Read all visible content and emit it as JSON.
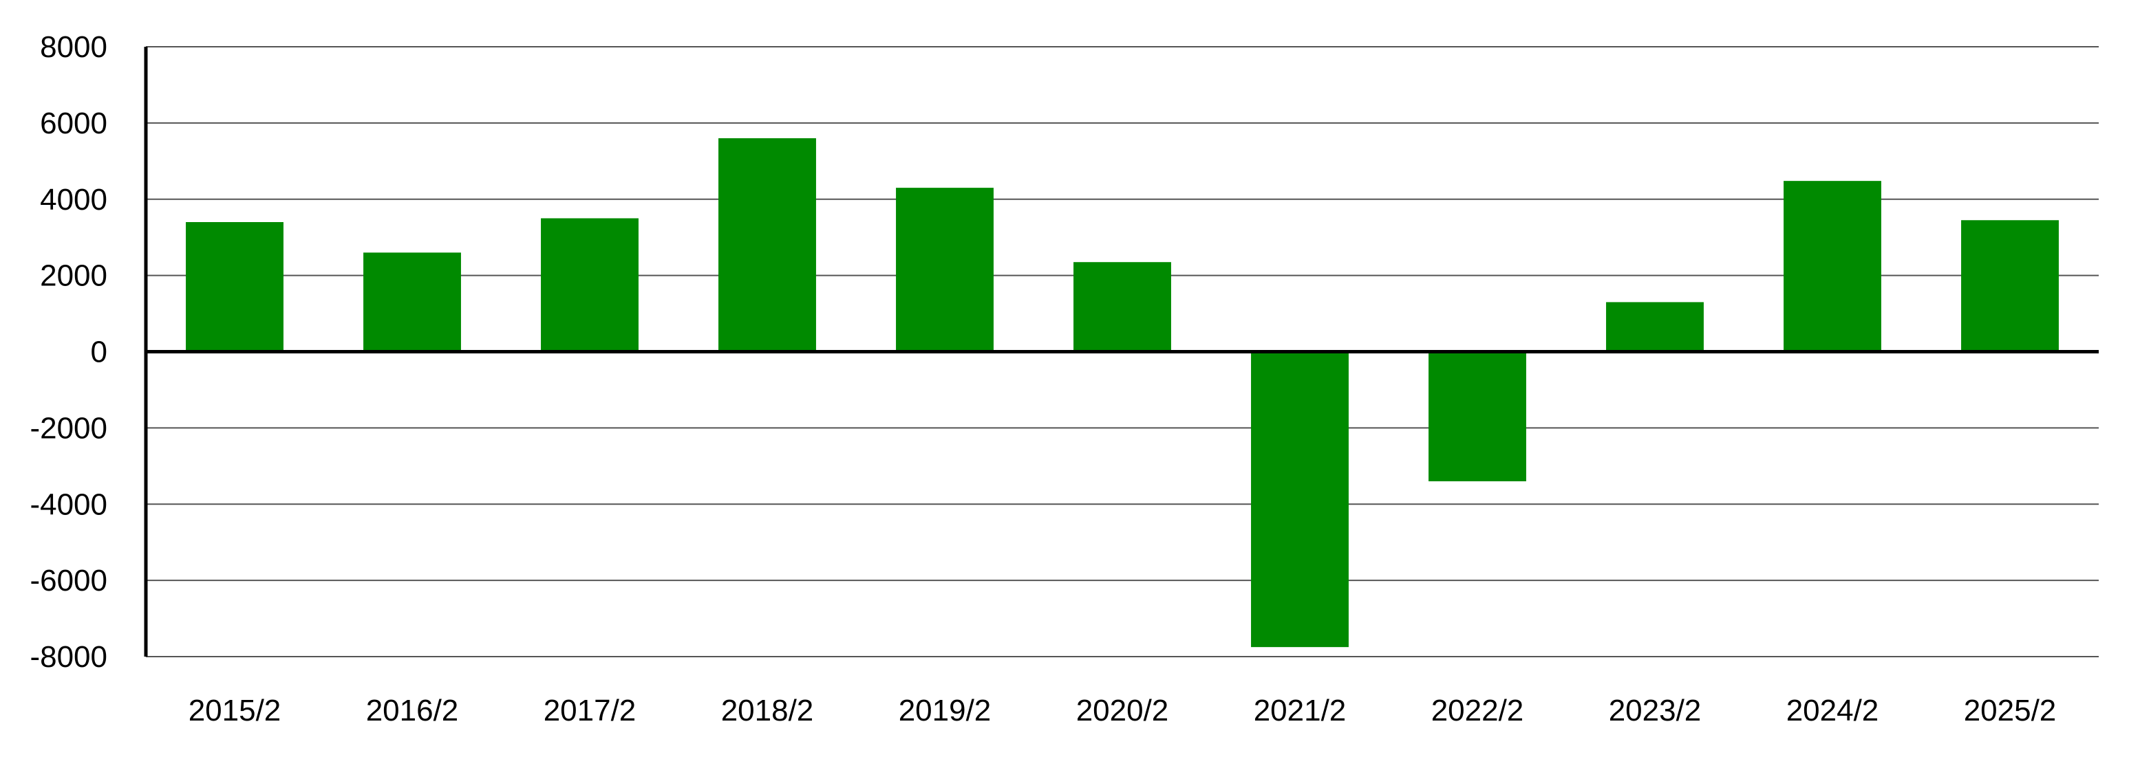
{
  "chart_data": {
    "type": "bar",
    "title": "",
    "xlabel": "",
    "ylabel": "",
    "categories": [
      "2015/2",
      "2016/2",
      "2017/2",
      "2018/2",
      "2019/2",
      "2020/2",
      "2021/2",
      "2022/2",
      "2023/2",
      "2024/2",
      "2025/2"
    ],
    "series": [
      {
        "values": [
          3400,
          2600,
          3500,
          5600,
          4300,
          2350,
          -7750,
          -3400,
          1300,
          4480,
          3450
        ]
      }
    ],
    "ylim": [
      -8000,
      8000
    ],
    "yticks": [
      8000,
      6000,
      4000,
      2000,
      0,
      -2000,
      -4000,
      -6000,
      -8000
    ],
    "grid": true,
    "legend": "none",
    "bar_color": "#008a00"
  }
}
